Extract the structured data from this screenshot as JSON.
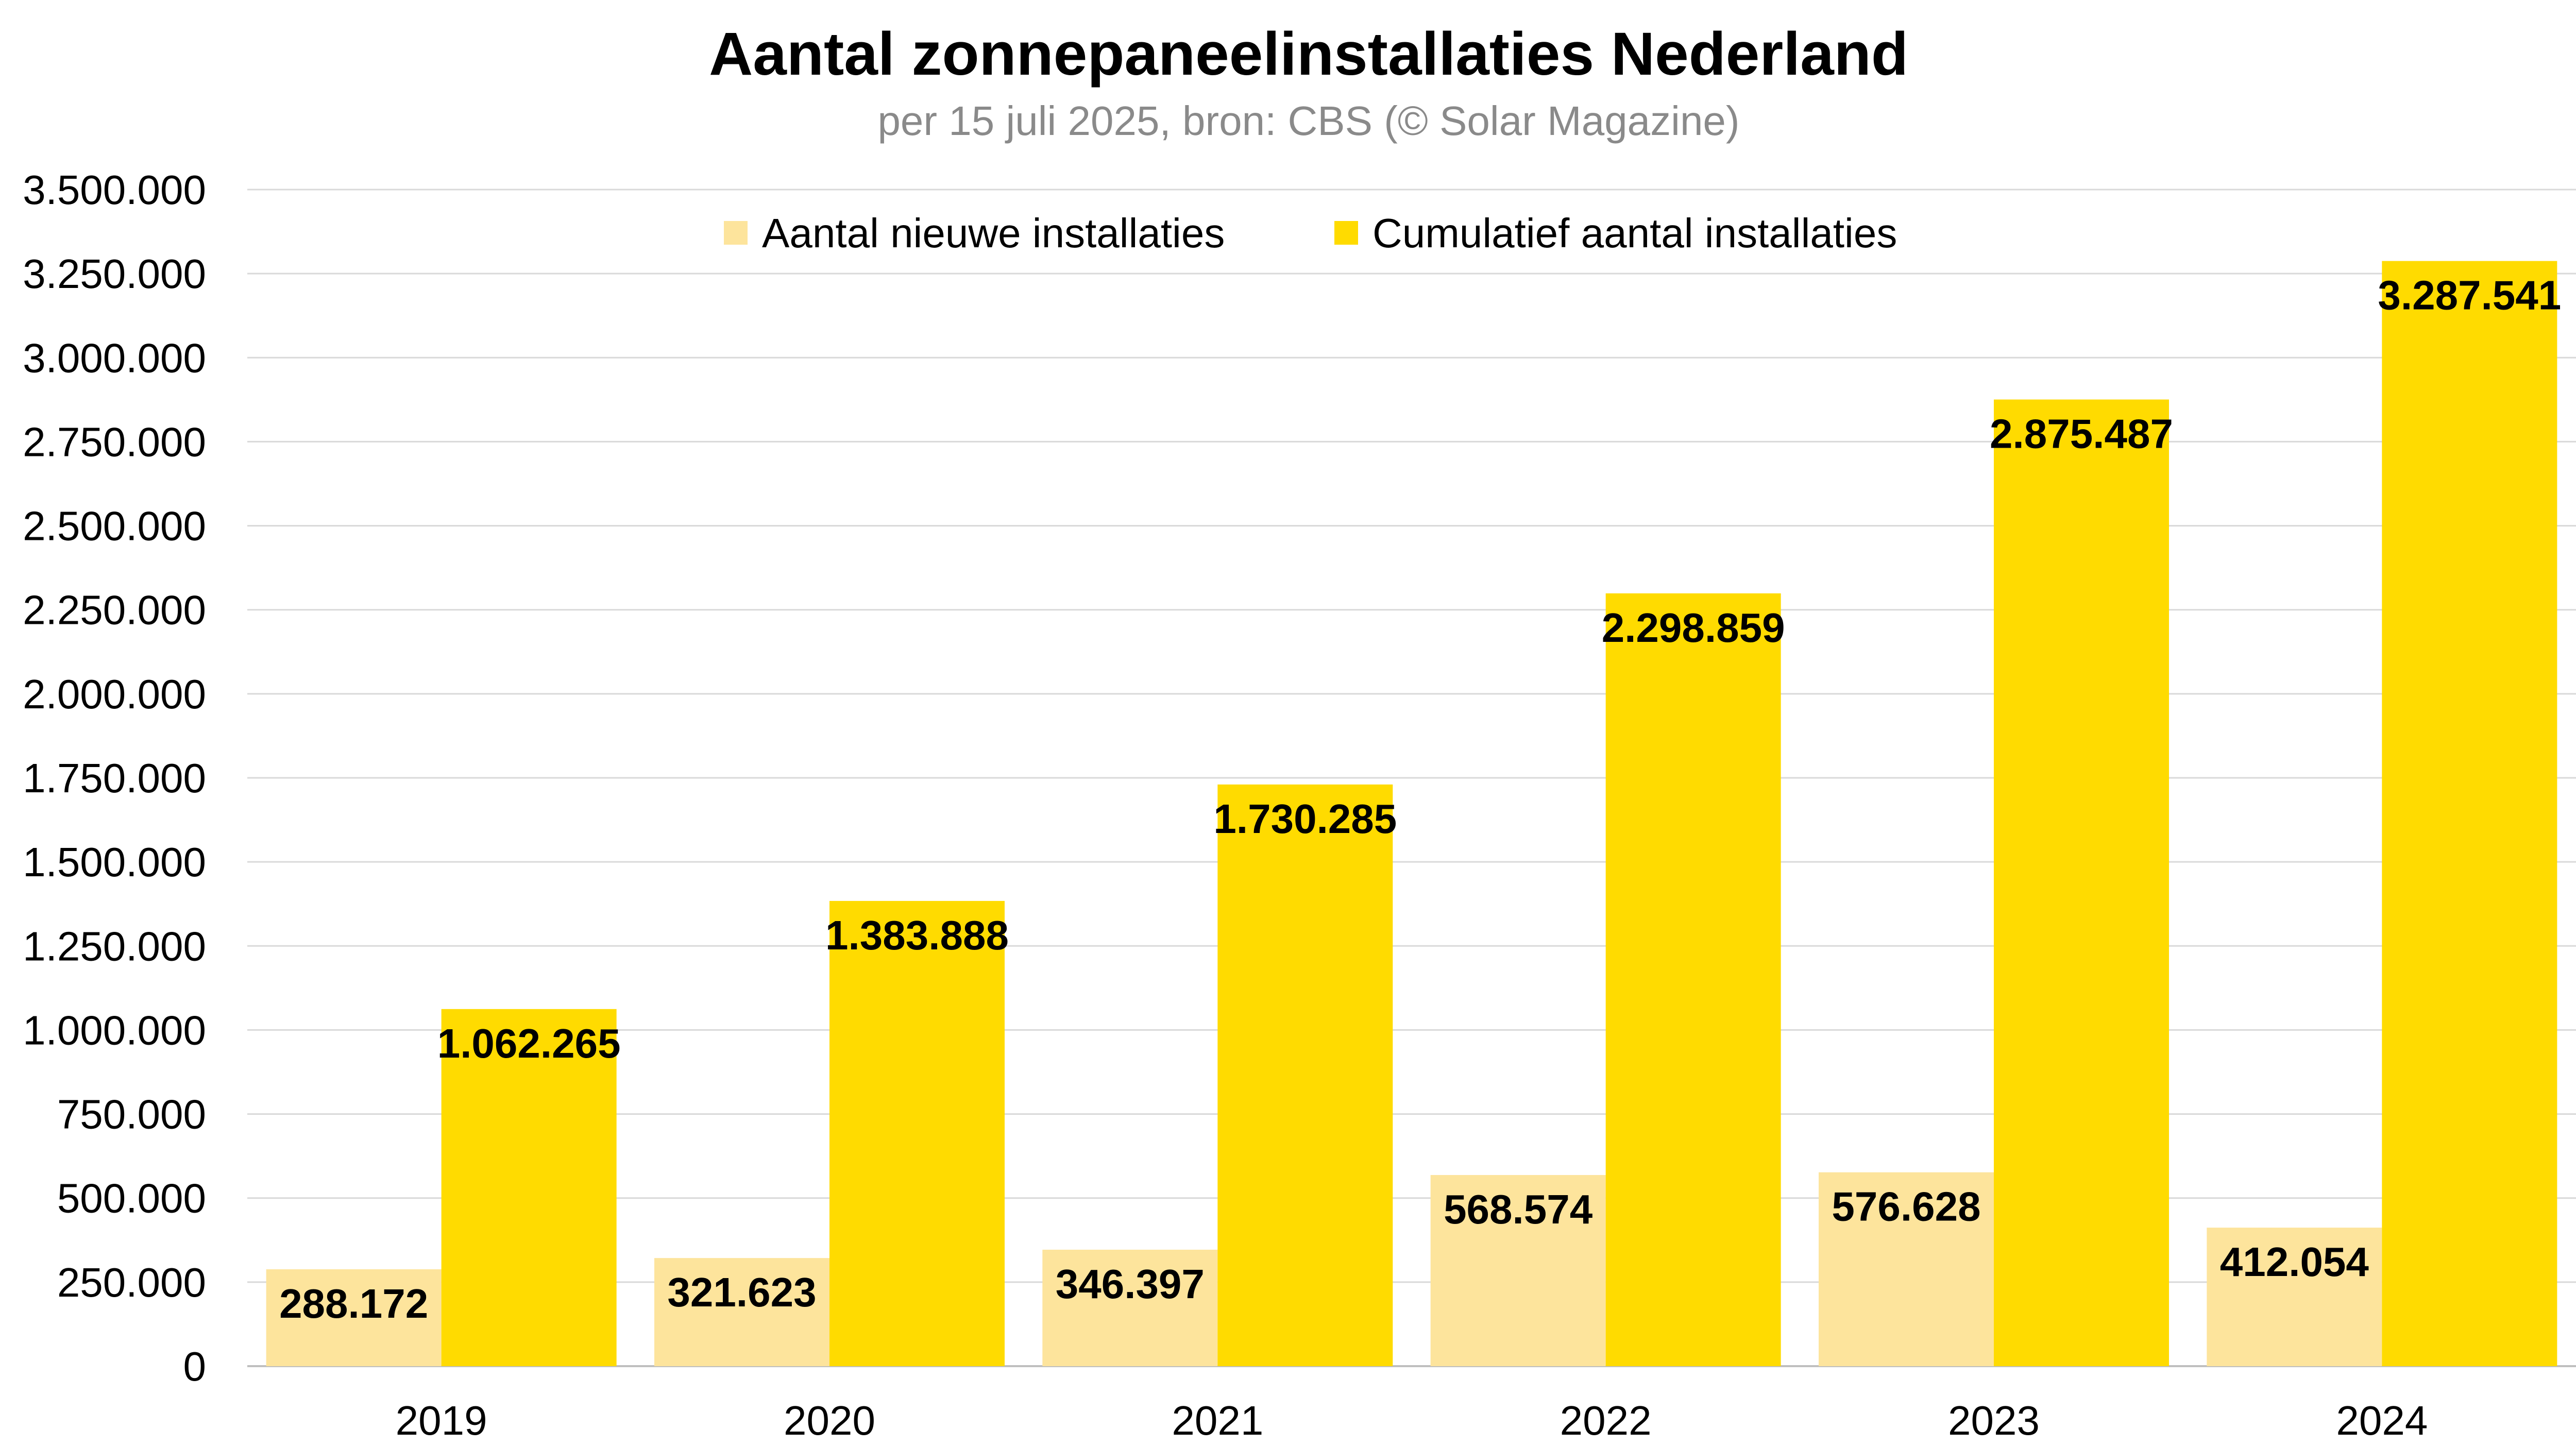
{
  "chart_data": {
    "type": "bar",
    "title": "Aantal zonnepaneelinstallaties Nederland",
    "subtitle": "per 15 juli 2025, bron: CBS (© Solar Magazine)",
    "categories": [
      "2019",
      "2020",
      "2021",
      "2022",
      "2023",
      "2024"
    ],
    "series": [
      {
        "name": "Aantal nieuwe installaties",
        "color": "#fde49c",
        "values": [
          288172,
          321623,
          346397,
          568574,
          576628,
          412054
        ],
        "labels": [
          "288.172",
          "321.623",
          "346.397",
          "568.574",
          "576.628",
          "412.054"
        ]
      },
      {
        "name": "Cumulatief aantal installaties",
        "color": "#ffdb00",
        "values": [
          1062265,
          1383888,
          1730285,
          2298859,
          2875487,
          3287541
        ],
        "labels": [
          "1.062.265",
          "1.383.888",
          "1.730.285",
          "2.298.859",
          "2.875.487",
          "3.287.541"
        ]
      }
    ],
    "ylim": [
      0,
      3500000
    ],
    "yticks": [
      0,
      250000,
      500000,
      750000,
      1000000,
      1250000,
      1500000,
      1750000,
      2000000,
      2250000,
      2500000,
      2750000,
      3000000,
      3250000,
      3500000
    ],
    "ytick_labels": [
      "0",
      "250.000",
      "500.000",
      "750.000",
      "1.000.000",
      "1.250.000",
      "1.500.000",
      "1.750.000",
      "2.000.000",
      "2.250.000",
      "2.500.000",
      "2.750.000",
      "3.000.000",
      "3.250.000",
      "3.500.000"
    ],
    "xlabel": "",
    "ylabel": "",
    "grid": true,
    "legend_position": "top-center"
  }
}
